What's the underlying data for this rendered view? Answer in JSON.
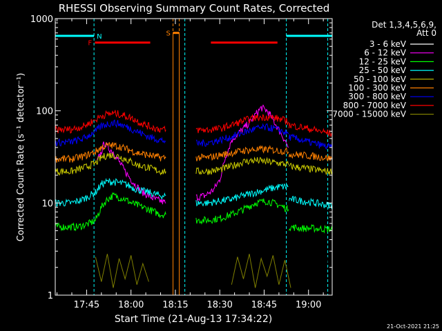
{
  "chart_data": {
    "type": "line",
    "title": "RHESSI Observing Summary Count Rates, Corrected",
    "xlabel": "Start Time (21-Aug-13 17:34:22)",
    "ylabel": "Corrected Count Rate (s⁻¹ detector⁻¹)",
    "yscale": "log",
    "ylim": [
      1,
      1000
    ],
    "xlim_minutes_after_1730": [
      4.4,
      98
    ],
    "x_ticks": [
      "17:45",
      "18:00",
      "18:15",
      "18:30",
      "18:45",
      "19:00"
    ],
    "x_tick_minutes_after_1730": [
      15,
      30,
      45,
      60,
      75,
      90
    ],
    "y_ticks": [
      "1",
      "10",
      "100",
      "1000"
    ],
    "legend_title_line1": "Det 1,3,4,5,6,9,",
    "legend_title_line2": "Att 0",
    "legend_position": "top-right, outside plot",
    "series": [
      {
        "name": "3 - 6 keV",
        "color": "#000000",
        "segments": [
          {
            "x": [
              4.4,
              14,
              18,
              20,
              22,
              24,
              26,
              28,
              30,
              32,
              34,
              36,
              38,
              40,
              41.8
            ],
            "y": [
              2.4,
              2.4,
              4,
              28,
              35,
              32,
              24,
              18,
              15,
              13,
              11,
              10,
              9.5,
              9.5,
              9.5
            ]
          },
          {
            "x": [
              52,
              55,
              58,
              60,
              62,
              64,
              66,
              68,
              70,
              72,
              74,
              76,
              78,
              80,
              82,
              83.2
            ],
            "y": [
              11,
              11,
              12,
              16,
              30,
              45,
              52,
              62,
              70,
              80,
              85,
              80,
              70,
              55,
              40,
              35
            ]
          },
          {
            "x": [
              83.4,
              88,
              92,
              96,
              98
            ],
            "y": [
              3,
              2.6,
              2.4,
              2.4,
              2.4
            ]
          }
        ]
      },
      {
        "name": "6 - 12 keV",
        "color": "#ff00ff",
        "segments": [
          {
            "x": [
              18.5,
              20,
              21,
              22,
              24,
              26,
              28,
              30,
              32,
              34,
              36,
              38,
              40,
              41.8
            ],
            "y": [
              28,
              36,
              45,
              40,
              36,
              28,
              22,
              18,
              15,
              13,
              12,
              11,
              10.5,
              10
            ]
          },
          {
            "x": [
              52,
              55,
              58,
              60,
              62,
              64,
              66,
              68,
              70,
              72,
              74,
              76,
              78,
              80,
              82,
              83.2
            ],
            "y": [
              11.5,
              12,
              14,
              18,
              32,
              48,
              56,
              64,
              74,
              90,
              108,
              100,
              80,
              62,
              48,
              40
            ]
          }
        ]
      },
      {
        "name": "12 - 25 keV",
        "color": "#00ff00",
        "segments": [
          {
            "x": [
              4.4,
              12,
              16,
              18,
              20,
              22,
              24,
              26,
              28,
              30,
              32,
              34,
              36,
              38,
              40,
              41.8
            ],
            "y": [
              5.5,
              5.5,
              6,
              6.5,
              9,
              11,
              12,
              11.5,
              11,
              10,
              9.5,
              9,
              8.5,
              8,
              7.5,
              7.5
            ]
          },
          {
            "x": [
              52,
              56,
              60,
              64,
              68,
              72,
              76,
              80,
              83.2
            ],
            "y": [
              6.5,
              6.5,
              6.8,
              7.5,
              8.5,
              10,
              10.5,
              9.5,
              8.5
            ]
          },
          {
            "x": [
              83.4,
              88,
              92,
              96,
              98
            ],
            "y": [
              5.5,
              5.3,
              5.3,
              5.2,
              5.2
            ]
          }
        ]
      },
      {
        "name": "25 - 50 keV",
        "color": "#00ffff",
        "segments": [
          {
            "x": [
              4.4,
              10,
              14,
              18,
              20,
              22,
              24,
              26,
              28,
              30,
              32,
              34,
              36,
              38,
              40,
              41.8
            ],
            "y": [
              10,
              10,
              11,
              13,
              16,
              17,
              17,
              16.5,
              16,
              15,
              14,
              13.5,
              13,
              12.5,
              12,
              12
            ]
          },
          {
            "x": [
              52,
              56,
              60,
              64,
              68,
              72,
              76,
              80,
              83.2
            ],
            "y": [
              10,
              10,
              10.5,
              11,
              12,
              13,
              14,
              15,
              15
            ]
          },
          {
            "x": [
              83.4,
              88,
              92,
              96,
              98
            ],
            "y": [
              11,
              10.5,
              10,
              9.5,
              9.5
            ]
          }
        ]
      },
      {
        "name": "50 - 100 keV",
        "color": "#cccc00",
        "segments": [
          {
            "x": [
              4.4,
              10,
              14,
              18,
              20,
              22,
              24,
              26,
              28,
              30,
              32,
              34,
              36,
              38,
              40,
              41.8
            ],
            "y": [
              22,
              22,
              24,
              27,
              31,
              33,
              33,
              32,
              30,
              28,
              26,
              25,
              24,
              23,
              22,
              22
            ]
          },
          {
            "x": [
              52,
              56,
              60,
              64,
              68,
              72,
              76,
              80,
              83.2
            ],
            "y": [
              22,
              22,
              23,
              25,
              28,
              29,
              28,
              27,
              26
            ]
          },
          {
            "x": [
              83.4,
              88,
              92,
              96,
              98
            ],
            "y": [
              25,
              24,
              23,
              22,
              22
            ]
          }
        ]
      },
      {
        "name": "100 - 300 keV",
        "color": "#ff8000",
        "segments": [
          {
            "x": [
              4.4,
              10,
              14,
              18,
              20,
              22,
              24,
              26,
              28,
              30,
              32,
              34,
              36,
              38,
              40,
              41.8
            ],
            "y": [
              30,
              30,
              32,
              36,
              40,
              42,
              42,
              41,
              39,
              37,
              35,
              34,
              33,
              32,
              31,
              31
            ]
          },
          {
            "x": [
              52,
              56,
              60,
              64,
              68,
              72,
              76,
              80,
              83.2
            ],
            "y": [
              31,
              31,
              33,
              35,
              37,
              38,
              38,
              37,
              36
            ]
          },
          {
            "x": [
              83.4,
              88,
              92,
              96,
              98
            ],
            "y": [
              34,
              33,
              32,
              31,
              30
            ]
          }
        ]
      },
      {
        "name": "300 - 800 keV",
        "color": "#0000ff",
        "segments": [
          {
            "x": [
              4.4,
              10,
              14,
              18,
              20,
              22,
              24,
              26,
              28,
              30,
              32,
              34,
              36,
              38,
              40,
              41.8
            ],
            "y": [
              45,
              46,
              50,
              60,
              68,
              72,
              74,
              72,
              68,
              64,
              60,
              56,
              52,
              50,
              48,
              47
            ]
          },
          {
            "x": [
              52,
              56,
              60,
              64,
              68,
              72,
              76,
              80,
              83.2
            ],
            "y": [
              44,
              45,
              48,
              52,
              58,
              64,
              66,
              62,
              56
            ]
          },
          {
            "x": [
              83.4,
              88,
              92,
              96,
              98
            ],
            "y": [
              52,
              48,
              44,
              41,
              40
            ]
          }
        ]
      },
      {
        "name": "800 - 7000 keV",
        "color": "#ff0000",
        "segments": [
          {
            "x": [
              4.4,
              10,
              14,
              18,
              20,
              22,
              24,
              26,
              28,
              30,
              32,
              34,
              36,
              38,
              40,
              41.8
            ],
            "y": [
              62,
              63,
              68,
              80,
              88,
              92,
              94,
              92,
              88,
              84,
              78,
              72,
              68,
              65,
              63,
              62
            ]
          },
          {
            "x": [
              52,
              56,
              60,
              64,
              68,
              72,
              76,
              80,
              83.2
            ],
            "y": [
              62,
              62,
              64,
              70,
              78,
              84,
              86,
              82,
              76
            ]
          },
          {
            "x": [
              83.4,
              88,
              92,
              96,
              98
            ],
            "y": [
              70,
              66,
              62,
              58,
              56
            ]
          }
        ]
      },
      {
        "name": "7000 - 15000 keV",
        "color": "#808000",
        "segments": [
          {
            "x": [
              18,
              20,
              22,
              24,
              26,
              28,
              30,
              32,
              34,
              36
            ],
            "y": [
              2.6,
              1.4,
              2.8,
              1.2,
              2.5,
              1.5,
              2.7,
              1.3,
              2.2,
              1.4
            ]
          },
          {
            "x": [
              64,
              66,
              68,
              70,
              72,
              74,
              76,
              78,
              80,
              82,
              84
            ],
            "y": [
              1.3,
              2.6,
              1.5,
              2.8,
              1.2,
              2.5,
              1.6,
              2.7,
              1.3,
              2.4,
              1.2
            ]
          }
        ]
      }
    ],
    "markers": [
      {
        "label": "N",
        "color": "#00ffff",
        "x_start": 4.4,
        "x_end": 17.5,
        "y": 650
      },
      {
        "label": "F",
        "color": "#ff0000",
        "x_start": 17.8,
        "x_end": 36.5,
        "y": 550
      },
      {
        "label": "S",
        "color": "#ff8000",
        "x_start": 44.2,
        "x_end": 46.3,
        "y": 700
      },
      {
        "color": "#ff0000",
        "x_start": 57,
        "x_end": 79.5,
        "y": 550
      },
      {
        "color": "#00ffff",
        "x_start": 82.5,
        "x_end": 98,
        "y": 650
      }
    ],
    "night_markers_minutes": [
      17.5,
      48.2,
      82.5,
      96.5
    ],
    "saa_markers_minutes": [
      44.2,
      46.3
    ]
  },
  "footer_timestamp": "21-Oct-2021 21:25"
}
